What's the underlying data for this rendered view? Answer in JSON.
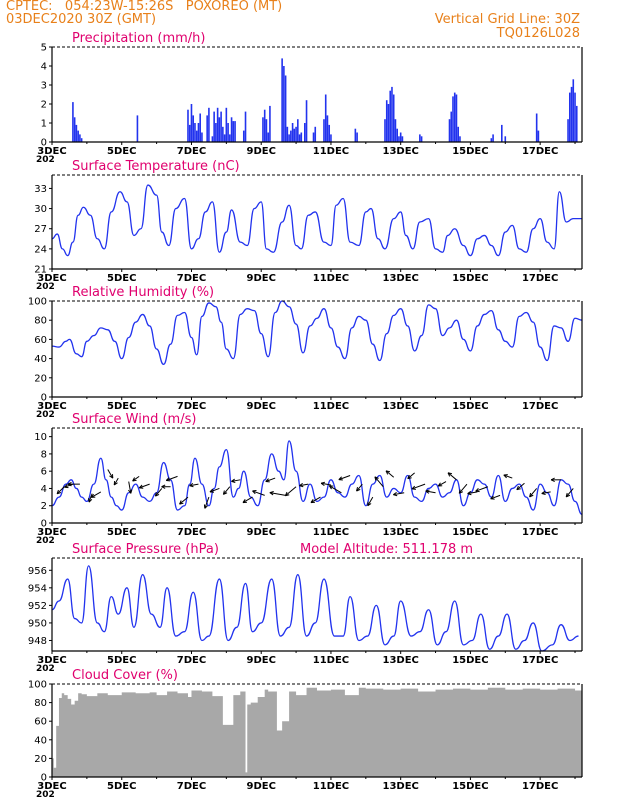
{
  "header": {
    "station": "CPTEC:   054:23W-15:26S   POXOREO (MT)",
    "date": "03DEC2020 30Z (GMT)",
    "grid_note": "Vertical Grid Line: 30Z",
    "model_code": "TQ0126L028"
  },
  "colors": {
    "header": "#e8801a",
    "panel_title": "#e0006e",
    "series": "#2233ee",
    "cloud": "#a8a8a8",
    "wind_arrow": "#000000"
  },
  "x_axis": {
    "tick_labels": [
      "3DEC",
      "5DEC",
      "7DEC",
      "9DEC",
      "11DEC",
      "13DEC",
      "15DEC",
      "17DEC"
    ],
    "tick_days": [
      3,
      5,
      7,
      9,
      11,
      13,
      15,
      17
    ],
    "range_days": [
      3,
      18.2
    ],
    "truncated_year_fragment": "202"
  },
  "chart_data": [
    {
      "id": "precip",
      "type": "bar",
      "title": "Precipitation (mm/h)",
      "ylim": [
        0,
        5
      ],
      "yticks": [
        0,
        1,
        2,
        3,
        4,
        5
      ],
      "x": [
        3.6,
        3.65,
        3.7,
        3.75,
        3.8,
        3.85,
        5.45,
        6.9,
        6.95,
        7.0,
        7.05,
        7.1,
        7.15,
        7.2,
        7.25,
        7.3,
        7.45,
        7.5,
        7.6,
        7.65,
        7.7,
        7.75,
        7.8,
        7.85,
        7.9,
        7.95,
        8.0,
        8.05,
        8.1,
        8.15,
        8.2,
        8.25,
        8.5,
        8.55,
        9.05,
        9.1,
        9.15,
        9.2,
        9.25,
        9.6,
        9.65,
        9.7,
        9.75,
        9.8,
        9.85,
        9.9,
        9.95,
        10.0,
        10.05,
        10.1,
        10.15,
        10.25,
        10.3,
        10.5,
        10.55,
        10.8,
        10.85,
        10.9,
        10.95,
        11.0,
        11.7,
        11.75,
        12.55,
        12.6,
        12.65,
        12.7,
        12.75,
        12.8,
        12.85,
        12.9,
        12.95,
        13.0,
        13.05,
        13.55,
        13.6,
        14.4,
        14.45,
        14.5,
        14.55,
        14.6,
        14.65,
        14.7,
        15.6,
        15.65,
        15.9,
        16.0,
        16.9,
        16.95,
        17.8,
        17.85,
        17.9,
        17.95,
        18.0,
        18.05
      ],
      "values": [
        2.1,
        1.3,
        0.9,
        0.6,
        0.4,
        0.2,
        1.4,
        1.7,
        0.9,
        2.0,
        1.4,
        1.0,
        0.6,
        1.0,
        1.5,
        0.5,
        1.4,
        1.8,
        0.3,
        1.6,
        1.0,
        1.8,
        1.3,
        1.6,
        0.8,
        0.4,
        1.8,
        1.0,
        0.4,
        1.3,
        1.1,
        1.1,
        0.6,
        1.6,
        1.3,
        1.7,
        1.2,
        0.5,
        1.9,
        4.4,
        4.0,
        3.5,
        0.8,
        0.4,
        0.6,
        1.0,
        0.7,
        0.8,
        1.2,
        0.4,
        0.5,
        1.0,
        2.2,
        0.5,
        0.8,
        1.2,
        2.5,
        1.4,
        0.9,
        0.4,
        0.7,
        0.5,
        1.2,
        2.2,
        2.0,
        2.7,
        2.9,
        2.5,
        1.2,
        0.7,
        0.3,
        0.5,
        0.3,
        0.4,
        0.3,
        1.2,
        1.6,
        2.4,
        2.6,
        2.5,
        0.8,
        0.3,
        0.2,
        0.4,
        0.9,
        0.3,
        1.5,
        0.6,
        1.2,
        2.6,
        2.9,
        3.3,
        2.6,
        1.9
      ]
    },
    {
      "id": "temp",
      "type": "line",
      "title": "Surface Temperature (nC)",
      "ylim": [
        21,
        35
      ],
      "yticks": [
        21,
        24,
        27,
        30,
        33
      ],
      "x": [
        3.0,
        3.15,
        3.3,
        3.45,
        3.6,
        3.75,
        3.9,
        4.1,
        4.3,
        4.5,
        4.7,
        4.95,
        5.15,
        5.35,
        5.55,
        5.75,
        6.0,
        6.15,
        6.35,
        6.55,
        6.8,
        7.0,
        7.2,
        7.4,
        7.6,
        7.8,
        8.0,
        8.15,
        8.4,
        8.6,
        8.8,
        9.0,
        9.15,
        9.35,
        9.6,
        9.8,
        10.0,
        10.15,
        10.35,
        10.55,
        10.8,
        11.0,
        11.15,
        11.35,
        11.55,
        11.8,
        12.0,
        12.15,
        12.35,
        12.55,
        12.8,
        13.0,
        13.15,
        13.35,
        13.55,
        13.8,
        14.0,
        14.2,
        14.35,
        14.55,
        14.8,
        15.0,
        15.2,
        15.4,
        15.6,
        15.8,
        16.0,
        16.2,
        16.4,
        16.6,
        16.8,
        17.0,
        17.2,
        17.4,
        17.55,
        17.75,
        17.95,
        18.2
      ],
      "values": [
        25.5,
        26.2,
        24.0,
        23.0,
        25.0,
        29.0,
        30.2,
        29.0,
        25.5,
        24.0,
        29.5,
        32.5,
        31.0,
        26.0,
        27.0,
        33.5,
        32.0,
        26.5,
        24.5,
        30.0,
        31.5,
        24.0,
        25.5,
        29.5,
        31.0,
        23.5,
        26.5,
        29.8,
        25.0,
        24.5,
        30.0,
        31.0,
        24.0,
        23.5,
        28.0,
        30.5,
        24.5,
        24.0,
        29.0,
        29.5,
        25.0,
        24.5,
        30.5,
        31.5,
        25.0,
        24.5,
        29.5,
        30.0,
        25.5,
        24.0,
        28.5,
        29.5,
        26.0,
        24.0,
        28.0,
        28.5,
        24.0,
        23.5,
        26.0,
        27.0,
        24.5,
        23.0,
        25.5,
        26.0,
        24.5,
        23.0,
        26.5,
        27.5,
        24.0,
        23.5,
        27.0,
        28.5,
        25.0,
        24.0,
        32.5,
        28.0,
        28.5,
        28.5
      ]
    },
    {
      "id": "rh",
      "type": "line",
      "title": "Relative Humidity (%)",
      "ylim": [
        0,
        100
      ],
      "yticks": [
        0,
        20,
        40,
        60,
        80,
        100
      ],
      "x": [
        3.0,
        3.2,
        3.4,
        3.5,
        3.7,
        3.85,
        4.0,
        4.2,
        4.4,
        4.6,
        4.8,
        5.0,
        5.2,
        5.4,
        5.6,
        5.8,
        6.0,
        6.2,
        6.4,
        6.6,
        6.8,
        7.0,
        7.15,
        7.3,
        7.5,
        7.7,
        7.85,
        8.0,
        8.2,
        8.4,
        8.6,
        8.8,
        9.0,
        9.2,
        9.4,
        9.6,
        9.8,
        10.0,
        10.2,
        10.4,
        10.6,
        10.8,
        11.0,
        11.2,
        11.4,
        11.6,
        11.8,
        12.0,
        12.2,
        12.4,
        12.6,
        12.8,
        13.0,
        13.2,
        13.4,
        13.6,
        13.8,
        14.0,
        14.2,
        14.4,
        14.6,
        14.8,
        15.0,
        15.2,
        15.4,
        15.6,
        15.8,
        16.0,
        16.2,
        16.4,
        16.6,
        16.8,
        17.0,
        17.2,
        17.4,
        17.6,
        17.8,
        18.0,
        18.2
      ],
      "values": [
        53,
        52,
        58,
        60,
        45,
        42,
        58,
        64,
        72,
        70,
        58,
        40,
        62,
        78,
        86,
        74,
        50,
        34,
        55,
        85,
        88,
        62,
        44,
        84,
        98,
        94,
        78,
        50,
        40,
        86,
        92,
        90,
        66,
        42,
        88,
        100,
        94,
        76,
        46,
        74,
        82,
        92,
        72,
        52,
        40,
        72,
        84,
        80,
        55,
        38,
        66,
        85,
        92,
        74,
        48,
        64,
        96,
        92,
        64,
        72,
        80,
        60,
        48,
        74,
        86,
        90,
        70,
        58,
        52,
        84,
        88,
        78,
        52,
        38,
        74,
        72,
        58,
        82,
        80
      ]
    },
    {
      "id": "wind",
      "type": "line",
      "title": "Surface Wind (m/s)",
      "ylim": [
        0,
        11
      ],
      "yticks": [
        0,
        2,
        4,
        6,
        8,
        10
      ],
      "x": [
        3.0,
        3.2,
        3.4,
        3.55,
        3.7,
        3.85,
        4.0,
        4.2,
        4.4,
        4.55,
        4.7,
        4.85,
        5.0,
        5.2,
        5.4,
        5.6,
        5.8,
        6.0,
        6.2,
        6.4,
        6.6,
        6.8,
        6.95,
        7.1,
        7.3,
        7.5,
        7.65,
        7.8,
        8.0,
        8.2,
        8.35,
        8.5,
        8.7,
        8.9,
        9.1,
        9.3,
        9.5,
        9.65,
        9.8,
        10.0,
        10.2,
        10.4,
        10.6,
        10.8,
        11.0,
        11.2,
        11.4,
        11.6,
        11.8,
        12.0,
        12.2,
        12.4,
        12.6,
        12.8,
        13.0,
        13.2,
        13.4,
        13.6,
        13.8,
        14.0,
        14.2,
        14.4,
        14.6,
        14.8,
        15.0,
        15.2,
        15.4,
        15.6,
        15.8,
        16.0,
        16.2,
        16.4,
        16.6,
        16.8,
        17.0,
        17.2,
        17.4,
        17.6,
        17.8,
        18.0,
        18.2
      ],
      "values": [
        2.0,
        3.0,
        4.5,
        5.0,
        4.0,
        3.0,
        2.5,
        4.5,
        7.5,
        5.0,
        3.0,
        2.0,
        1.5,
        3.5,
        4.5,
        3.0,
        2.5,
        3.5,
        7.0,
        5.0,
        1.5,
        2.0,
        4.5,
        7.5,
        4.5,
        2.0,
        4.0,
        6.5,
        8.5,
        3.0,
        4.0,
        6.0,
        3.0,
        2.0,
        5.0,
        8.0,
        6.0,
        5.0,
        9.5,
        6.0,
        2.5,
        4.5,
        2.5,
        3.0,
        5.0,
        3.5,
        3.0,
        4.5,
        5.5,
        2.0,
        4.5,
        5.5,
        3.0,
        4.0,
        3.5,
        5.5,
        3.0,
        2.5,
        4.0,
        4.5,
        3.0,
        3.5,
        5.0,
        2.0,
        3.5,
        5.0,
        4.5,
        3.0,
        5.5,
        2.5,
        4.0,
        4.5,
        3.0,
        1.5,
        4.5,
        3.5,
        2.0,
        5.0,
        4.5,
        2.5,
        1.0
      ]
    },
    {
      "id": "pres",
      "type": "line",
      "title": "Surface Pressure (hPa)",
      "annotation": "Model Altitude: 511.178 m",
      "ylim": [
        946.8,
        957.4
      ],
      "yticks": [
        948,
        950,
        952,
        954,
        956
      ],
      "x": [
        3.0,
        3.2,
        3.45,
        3.65,
        3.85,
        4.05,
        4.3,
        4.5,
        4.7,
        4.9,
        5.15,
        5.35,
        5.6,
        5.85,
        6.1,
        6.3,
        6.55,
        6.8,
        7.05,
        7.3,
        7.5,
        7.8,
        8.05,
        8.3,
        8.55,
        8.75,
        9.0,
        9.3,
        9.55,
        9.8,
        10.05,
        10.3,
        10.55,
        10.8,
        11.1,
        11.35,
        11.55,
        11.8,
        12.05,
        12.3,
        12.55,
        12.8,
        13.0,
        13.3,
        13.55,
        13.8,
        14.05,
        14.3,
        14.55,
        14.8,
        15.05,
        15.3,
        15.55,
        15.8,
        16.05,
        16.3,
        16.55,
        16.8,
        17.05,
        17.35,
        17.6,
        17.85,
        18.1
      ],
      "values": [
        951.5,
        952.5,
        955.0,
        950.5,
        950.0,
        956.5,
        950.0,
        949.0,
        953.0,
        951.0,
        954.0,
        949.5,
        955.5,
        951.0,
        949.5,
        954.0,
        948.5,
        949.0,
        953.5,
        948.0,
        948.5,
        955.0,
        948.0,
        949.5,
        954.5,
        949.0,
        950.0,
        955.0,
        948.5,
        949.5,
        955.5,
        948.5,
        950.0,
        955.0,
        948.5,
        948.5,
        953.0,
        948.0,
        948.5,
        952.0,
        947.5,
        948.5,
        952.5,
        948.5,
        949.0,
        951.5,
        947.5,
        949.0,
        952.5,
        947.5,
        948.0,
        951.0,
        947.0,
        948.5,
        951.0,
        947.0,
        948.0,
        950.0,
        946.8,
        947.5,
        949.8,
        948.0,
        948.5
      ]
    },
    {
      "id": "cloud",
      "type": "area",
      "title": "Cloud Cover (%)",
      "ylim": [
        0,
        100
      ],
      "yticks": [
        0,
        20,
        40,
        60,
        80,
        100
      ],
      "x": [
        3.0,
        3.05,
        3.12,
        3.2,
        3.28,
        3.35,
        3.45,
        3.55,
        3.65,
        3.75,
        3.85,
        4.0,
        4.3,
        4.6,
        5.0,
        5.4,
        5.8,
        6.0,
        6.3,
        6.6,
        6.9,
        7.0,
        7.3,
        7.6,
        7.9,
        8.2,
        8.4,
        8.5,
        8.55,
        8.6,
        8.7,
        8.9,
        9.1,
        9.2,
        9.3,
        9.45,
        9.6,
        9.8,
        10.0,
        10.3,
        10.6,
        11.0,
        11.4,
        11.8,
        12.0,
        12.5,
        13.0,
        13.5,
        14.0,
        14.5,
        15.0,
        15.5,
        16.0,
        16.5,
        17.0,
        17.5,
        18.0,
        18.2
      ],
      "values": [
        20,
        10,
        55,
        85,
        90,
        88,
        84,
        78,
        82,
        90,
        89,
        87,
        90,
        88,
        91,
        90,
        91,
        88,
        92,
        90,
        86,
        93,
        92,
        87,
        56,
        88,
        92,
        92,
        5,
        78,
        80,
        86,
        94,
        92,
        92,
        50,
        60,
        92,
        88,
        96,
        93,
        94,
        88,
        96,
        95,
        94,
        95,
        92,
        94,
        95,
        94,
        96,
        94,
        95,
        94,
        95,
        93,
        92
      ]
    }
  ],
  "wind_arrows": {
    "note": "direction glyphs along wind trace",
    "x": [
      3.35,
      3.6,
      3.8,
      4.15,
      4.4,
      4.6,
      4.9,
      5.2,
      5.5,
      5.8,
      6.15,
      6.4,
      6.6,
      6.9,
      7.2,
      7.5,
      7.8,
      8.1,
      8.4,
      8.75,
      9.1,
      9.4,
      9.7,
      10.0,
      10.35,
      10.7,
      11.0,
      11.3,
      11.55,
      11.9,
      12.2,
      12.5,
      12.8,
      13.1,
      13.4,
      13.7,
      14.0,
      14.3,
      14.6,
      14.9,
      15.2,
      15.5,
      15.85,
      16.2,
      16.55,
      16.9,
      17.3,
      17.6,
      17.95
    ],
    "y": [
      4.2,
      4.5,
      4.5,
      3.4,
      3.6,
      6.2,
      5.2,
      4.8,
      5.4,
      4.5,
      4.0,
      4.2,
      5.4,
      3.0,
      4.5,
      3.0,
      4.0,
      4.2,
      5.0,
      3.0,
      3.2,
      5.2,
      3.2,
      4.2,
      4.5,
      3.0,
      4.4,
      3.5,
      5.5,
      4.5,
      3.0,
      4.2,
      5.3,
      3.5,
      5.8,
      4.5,
      3.5,
      4.8,
      5.0,
      4.5,
      3.6,
      4.2,
      3.2,
      5.2,
      4.6,
      4.0,
      3.6,
      5.0,
      4.0
    ],
    "dir_deg": [
      225,
      200,
      180,
      250,
      210,
      300,
      240,
      280,
      215,
      200,
      230,
      180,
      200,
      220,
      190,
      250,
      200,
      230,
      190,
      210,
      160,
      200,
      170,
      220,
      190,
      210,
      170,
      150,
      200,
      230,
      240,
      130,
      140,
      190,
      220,
      200,
      170,
      210,
      140,
      230,
      190,
      200,
      200,
      160,
      220,
      230,
      190,
      180,
      230
    ],
    "len": [
      10,
      9,
      12,
      9,
      11,
      10,
      8,
      12,
      8,
      11,
      10,
      9,
      12,
      11,
      9,
      12,
      10,
      10,
      9,
      11,
      13,
      10,
      16,
      14,
      9,
      11,
      10,
      14,
      12,
      9,
      10,
      13,
      10,
      11,
      9,
      14,
      10,
      9,
      11,
      12,
      10,
      13,
      10,
      9,
      10,
      11,
      9,
      10,
      11
    ]
  }
}
